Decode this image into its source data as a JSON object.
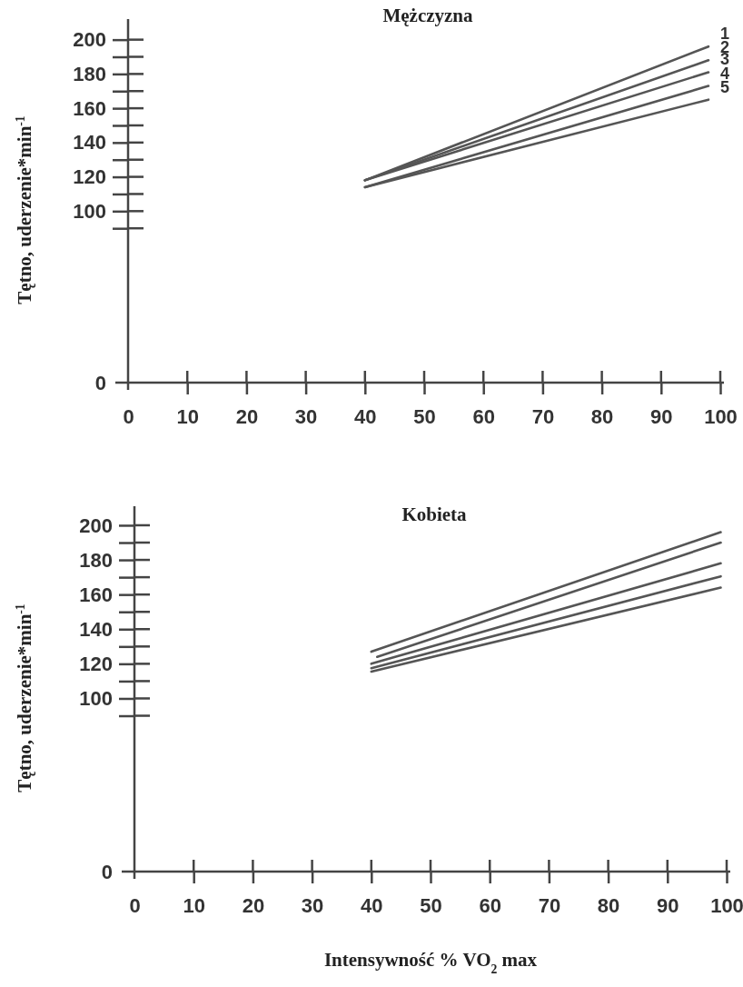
{
  "chart_data": [
    {
      "type": "line",
      "title": "Mężczyzna",
      "ylabel": "Tętno, uderzenie*min$^{-1}$",
      "xlim": [
        0,
        100
      ],
      "ylim": [
        0,
        212
      ],
      "xticks": [
        0,
        10,
        20,
        30,
        40,
        50,
        60,
        70,
        80,
        90,
        100
      ],
      "yticks": [
        0,
        {
          "value": 90,
          "label": null
        },
        100,
        {
          "value": 110,
          "label": null
        },
        120,
        {
          "value": 130,
          "label": null
        },
        140,
        {
          "value": 150,
          "label": null
        },
        160,
        {
          "value": 170,
          "label": null
        },
        180,
        {
          "value": 190,
          "label": null
        },
        200
      ],
      "marker": "none",
      "line_style": "solid",
      "x": [
        40,
        98
      ],
      "series": [
        {
          "name": "1",
          "color": "#555555",
          "values": [
            118,
            196
          ]
        },
        {
          "name": "2",
          "color": "#555555",
          "values": [
            118,
            188
          ]
        },
        {
          "name": "3",
          "color": "#555555",
          "values": [
            118,
            181
          ]
        },
        {
          "name": "4",
          "color": "#555555",
          "values": [
            114,
            173
          ]
        },
        {
          "name": "5",
          "color": "#555555",
          "values": [
            114,
            165
          ]
        }
      ]
    },
    {
      "type": "line",
      "title": "Kobieta",
      "ylabel": "Tętno, uderzenie*min$^{-1}$",
      "xlabel": "Intensywność  % VO$_{2}$ max",
      "xlim": [
        0,
        100
      ],
      "ylim": [
        0,
        211
      ],
      "xticks": [
        0,
        10,
        20,
        30,
        40,
        50,
        60,
        70,
        80,
        90,
        100
      ],
      "yticks": [
        0,
        {
          "value": 90,
          "label": null
        },
        100,
        {
          "value": 110,
          "label": null
        },
        120,
        {
          "value": 130,
          "label": null
        },
        140,
        {
          "value": 150,
          "label": null
        },
        160,
        {
          "value": 170,
          "label": null
        },
        180,
        {
          "value": 190,
          "label": null
        },
        200
      ],
      "marker": "none",
      "line_style": "solid",
      "series": [
        {
          "color": "#555555",
          "x": [
            40,
            99
          ],
          "values": [
            127,
            196
          ]
        },
        {
          "color": "#555555",
          "x": [
            41,
            99
          ],
          "values": [
            124,
            190
          ]
        },
        {
          "color": "#555555",
          "x": [
            40,
            99
          ],
          "values": [
            120,
            178
          ]
        },
        {
          "color": "#555555",
          "x": [
            40,
            99
          ],
          "values": [
            117.5,
            170.5
          ]
        },
        {
          "color": "#555555",
          "x": [
            40,
            99
          ],
          "values": [
            115.5,
            164
          ]
        }
      ]
    }
  ]
}
